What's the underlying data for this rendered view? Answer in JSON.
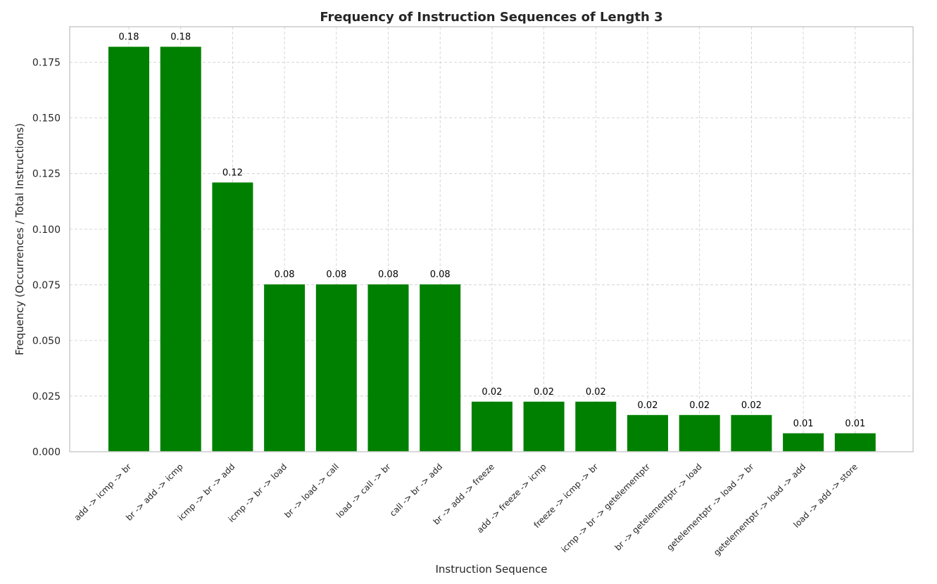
{
  "chart_data": {
    "type": "bar",
    "title": "Frequency of Instruction Sequences of Length 3",
    "xlabel": "Instruction Sequence",
    "ylabel": "Frequency (Occurrences / Total Instructions)",
    "categories": [
      "add -> icmp -> br",
      "br -> add -> icmp",
      "icmp -> br -> add",
      "icmp -> br -> load",
      "br -> load -> call",
      "load -> call -> br",
      "call -> br -> add",
      "br -> add -> freeze",
      "add -> freeze -> icmp",
      "freeze -> icmp -> br",
      "icmp -> br -> getelementptr",
      "br -> getelementptr -> load",
      "getelementptr -> load -> br",
      "getelementptr -> load -> add",
      "load -> add -> store"
    ],
    "values": [
      0.182,
      0.182,
      0.121,
      0.0752,
      0.0752,
      0.0752,
      0.0752,
      0.0225,
      0.0225,
      0.0225,
      0.0165,
      0.0165,
      0.0165,
      0.0083,
      0.0083
    ],
    "data_labels": [
      "0.18",
      "0.18",
      "0.12",
      "0.08",
      "0.08",
      "0.08",
      "0.08",
      "0.02",
      "0.02",
      "0.02",
      "0.02",
      "0.02",
      "0.02",
      "0.01",
      "0.01"
    ],
    "yticks": [
      0.0,
      0.025,
      0.05,
      0.075,
      0.1,
      0.125,
      0.15,
      0.175
    ],
    "ytick_labels": [
      "0.000",
      "0.025",
      "0.050",
      "0.075",
      "0.100",
      "0.125",
      "0.150",
      "0.175"
    ],
    "ylim": [
      0,
      0.191
    ],
    "grid": true,
    "colors": {
      "bar": "#008000",
      "grid": "#cccccc",
      "frame": "#cccccc",
      "text": "#262626"
    }
  }
}
